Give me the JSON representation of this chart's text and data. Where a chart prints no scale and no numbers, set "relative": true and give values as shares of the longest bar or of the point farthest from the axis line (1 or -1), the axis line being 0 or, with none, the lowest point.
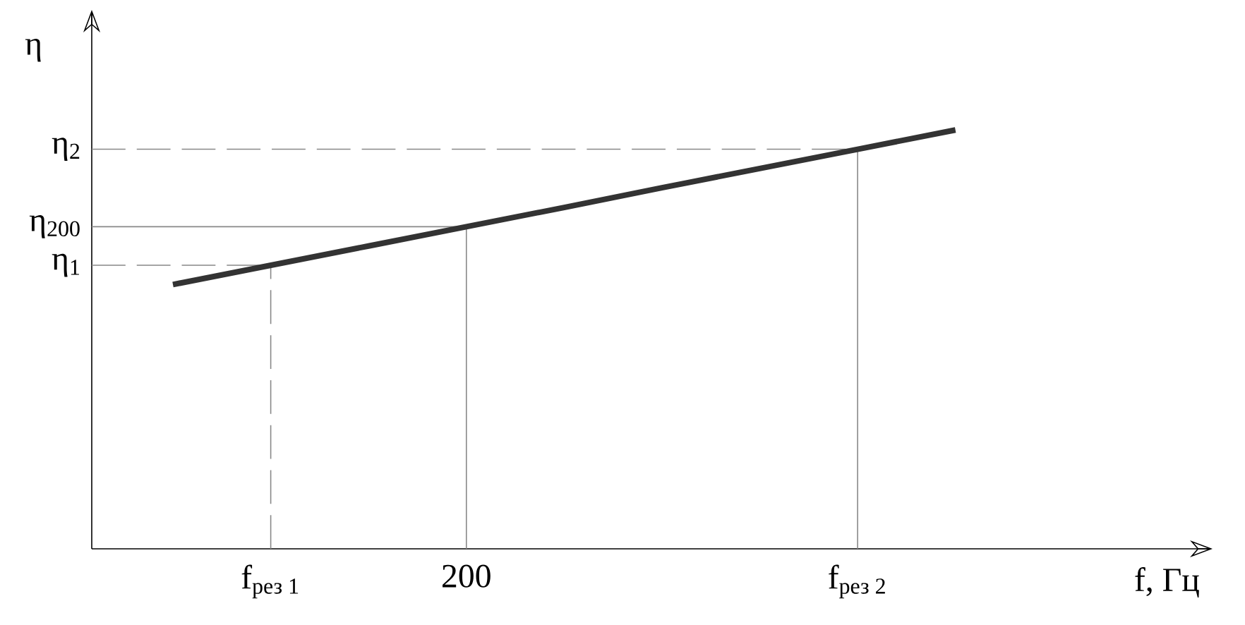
{
  "chart_data": {
    "type": "line",
    "relative": true,
    "xlabel": "f,  Гц",
    "ylabel": "η",
    "categories": [
      null,
      "f$_{рез 1}$",
      null,
      "200",
      null,
      null,
      null,
      "f$_{рез 2}$",
      null
    ],
    "values": [
      0.631,
      0.677,
      0.723,
      0.769,
      0.815,
      0.862,
      0.908,
      0.954,
      1.0
    ],
    "color": "#333333",
    "ref_lines": [
      {
        "axis": "y",
        "value": 0.677,
        "label": "η$_{1}$",
        "color": "#888888",
        "line_style": "dashed"
      },
      {
        "axis": "y",
        "value": 0.769,
        "label": "η$_{200}$",
        "color": "#888888",
        "line_style": "solid"
      },
      {
        "axis": "y",
        "value": 0.954,
        "label": "η$_{2}$",
        "color": "#888888",
        "line_style": "dashed"
      },
      {
        "axis": "x",
        "value": "f$_{рез 1}$",
        "color": "#888888",
        "line_style": "dashed"
      },
      {
        "axis": "x",
        "value": "200",
        "color": "#888888",
        "line_style": "solid"
      },
      {
        "axis": "x",
        "value": "f$_{рез 2}$",
        "color": "#888888",
        "line_style": "solid"
      }
    ]
  }
}
